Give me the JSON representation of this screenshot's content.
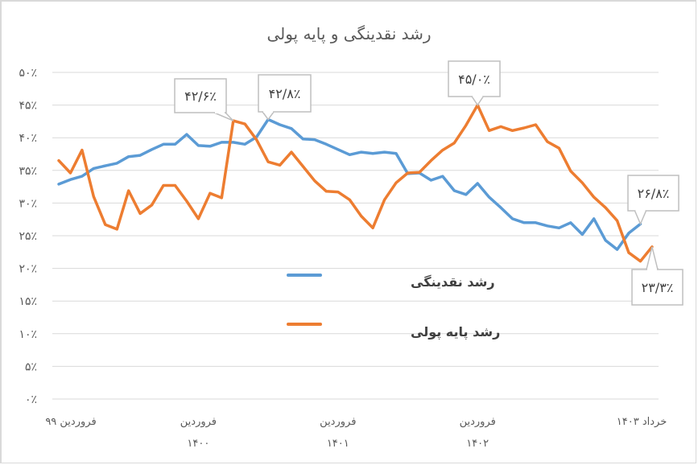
{
  "chart_data": {
    "type": "line",
    "title": "رشد نقدینگی و پایه پولی",
    "xlabel": "",
    "ylabel": "",
    "ylim": [
      0,
      50
    ],
    "y_ticks": [
      "۰٪",
      "۵٪",
      "۱۰٪",
      "۱۵٪",
      "۲۰٪",
      "۲۵٪",
      "۳۰٪",
      "۳۵٪",
      "۴۰٪",
      "۴۵٪",
      "۵۰٪"
    ],
    "y_tick_values": [
      0,
      5,
      10,
      15,
      20,
      25,
      30,
      35,
      40,
      45,
      50
    ],
    "grid": true,
    "legend_position": "inside-center",
    "x_tick_labels": [
      {
        "index": 0,
        "line1": "فروردین ۹۹",
        "line2": ""
      },
      {
        "index": 12,
        "line1": "فروردین",
        "line2": "۱۴۰۰"
      },
      {
        "index": 24,
        "line1": "فروردین",
        "line2": "۱۴۰۱"
      },
      {
        "index": 36,
        "line1": "فروردین",
        "line2": "۱۴۰۲"
      },
      {
        "index": 50,
        "line1": "خرداد ۱۴۰۳",
        "line2": ""
      }
    ],
    "series": [
      {
        "name": "رشد نقدینگی",
        "color": "#5b9bd5",
        "values": [
          32.9,
          33.6,
          34.1,
          35.3,
          35.7,
          36.1,
          37.1,
          37.3,
          38.2,
          39.0,
          39.0,
          40.5,
          38.8,
          38.7,
          39.3,
          39.3,
          39.0,
          40.1,
          42.8,
          42.0,
          41.4,
          39.8,
          39.7,
          39.0,
          38.2,
          37.4,
          37.8,
          37.6,
          37.8,
          37.6,
          34.5,
          34.6,
          33.5,
          34.1,
          31.9,
          31.3,
          33.0,
          30.9,
          29.3,
          27.6,
          27.0,
          27.0,
          26.5,
          26.2,
          27.0,
          25.2,
          27.6,
          24.3,
          22.9,
          25.4,
          26.8
        ]
      },
      {
        "name": "رشد پایه پولی",
        "color": "#ed7d31",
        "values": [
          36.5,
          34.6,
          38.1,
          31.0,
          26.7,
          26.0,
          31.9,
          28.4,
          29.7,
          32.7,
          32.7,
          30.3,
          27.6,
          31.5,
          30.8,
          42.6,
          42.1,
          39.7,
          36.3,
          35.8,
          37.8,
          35.6,
          33.4,
          31.8,
          31.7,
          30.5,
          28.0,
          26.2,
          30.5,
          33.1,
          34.6,
          34.7,
          36.5,
          38.1,
          39.2,
          41.9,
          45.0,
          41.1,
          41.7,
          41.1,
          41.5,
          42.0,
          39.4,
          38.4,
          34.9,
          33.1,
          30.9,
          29.3,
          27.3,
          22.4,
          21.1,
          23.3
        ]
      }
    ],
    "annotations": [
      {
        "series": "رشد پایه پولی",
        "index": 15,
        "label": "۴۲/۶٪"
      },
      {
        "series": "رشد نقدینگی",
        "index": 18,
        "label": "۴۲/۸٪"
      },
      {
        "series": "رشد پایه پولی",
        "index": 36,
        "label": "۴۵/۰٪"
      },
      {
        "series": "رشد نقدینگی",
        "index": 50,
        "label": "۲۶/۸٪"
      },
      {
        "series": "رشد پایه پولی",
        "index": 51,
        "label": "۲۳/۳٪"
      }
    ]
  },
  "legend": {
    "liquidity_label": "رشد نقدینگی",
    "base_money_label": "رشد پایه پولی"
  },
  "colors": {
    "liquidity": "#5b9bd5",
    "base_money": "#ed7d31",
    "grid": "#d9d9d9",
    "text": "#595959",
    "callout_border": "#bfbfbf"
  }
}
